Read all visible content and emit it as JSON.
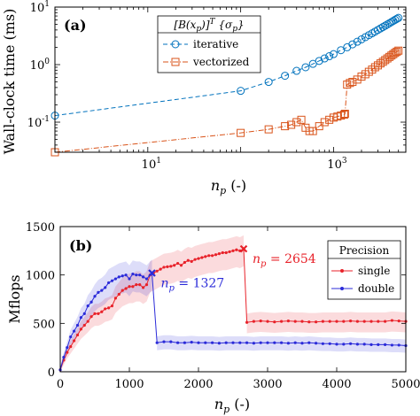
{
  "chart_data": [
    {
      "type": "line",
      "panel_label": "(a)",
      "xlabel": "n_p (-)",
      "ylabel": "Wall-clock time (ms)",
      "xscale": "log",
      "yscale": "log",
      "xlim": [
        1,
        6000
      ],
      "ylim": [
        0.03,
        10
      ],
      "xticks": [
        10,
        1000
      ],
      "xtick_labels": [
        "10^1",
        "10^3"
      ],
      "yticks": [
        0.1,
        1,
        10
      ],
      "ytick_labels": [
        "10^-1",
        "10^0",
        "10^1"
      ],
      "grid": false,
      "legend": {
        "title": "[B(x_p)]^T {σ_p}",
        "placement": "top-right",
        "entries": [
          "iterative",
          "vectorized"
        ]
      },
      "series": [
        {
          "name": "iterative",
          "color": "#0072BD",
          "marker": "circle",
          "line_style": "dashed",
          "x": [
            1,
            100,
            200,
            300,
            400,
            500,
            600,
            700,
            800,
            900,
            1000,
            1200,
            1400,
            1600,
            1800,
            2000,
            2200,
            2400,
            2600,
            2800,
            3000,
            3200,
            3400,
            3600,
            3800,
            4000,
            4200,
            4400,
            4600,
            4800,
            5000
          ],
          "y": [
            0.13,
            0.35,
            0.5,
            0.64,
            0.78,
            0.9,
            1.03,
            1.16,
            1.28,
            1.4,
            1.52,
            1.78,
            2.0,
            2.25,
            2.5,
            2.75,
            3.0,
            3.25,
            3.5,
            3.75,
            4.0,
            4.25,
            4.5,
            4.75,
            5.0,
            5.25,
            5.5,
            5.75,
            6.0,
            6.25,
            6.5
          ]
        },
        {
          "name": "vectorized",
          "color": "#D95319",
          "marker": "square",
          "line_style": "dashdot",
          "x": [
            1,
            100,
            200,
            300,
            350,
            400,
            450,
            500,
            550,
            600,
            700,
            800,
            900,
            1000,
            1100,
            1200,
            1300,
            1327,
            1400,
            1500,
            1600,
            1800,
            2000,
            2200,
            2400,
            2600,
            2800,
            3000,
            3200,
            3400,
            3600,
            3800,
            4000,
            4200,
            4400,
            4600,
            4800,
            5000
          ],
          "y": [
            0.03,
            0.065,
            0.075,
            0.085,
            0.09,
            0.1,
            0.11,
            0.08,
            0.07,
            0.07,
            0.085,
            0.1,
            0.11,
            0.12,
            0.125,
            0.13,
            0.135,
            0.14,
            0.45,
            0.48,
            0.5,
            0.55,
            0.62,
            0.68,
            0.75,
            0.82,
            0.9,
            0.97,
            1.05,
            1.12,
            1.2,
            1.28,
            1.36,
            1.44,
            1.52,
            1.6,
            1.68,
            1.75
          ]
        }
      ]
    },
    {
      "type": "line",
      "panel_label": "(b)",
      "xlabel": "n_p (-)",
      "ylabel": "Mflops",
      "xlim": [
        0,
        5000
      ],
      "ylim": [
        0,
        1500
      ],
      "xticks": [
        0,
        1000,
        2000,
        3000,
        4000,
        5000
      ],
      "yticks": [
        0,
        500,
        1000,
        1500
      ],
      "grid": false,
      "legend": {
        "title": "Precision",
        "placement": "center-right",
        "entries": [
          "single",
          "double"
        ]
      },
      "annotations": [
        {
          "text": "n_p = 2654",
          "x": 2654,
          "y": 1270,
          "color": "#E8222A"
        },
        {
          "text": "n_p = 1327",
          "x": 1327,
          "y": 1020,
          "color": "#2B2BD9"
        }
      ],
      "series": [
        {
          "name": "single",
          "color": "#E8222A",
          "marker": "dot",
          "x": [
            0,
            50,
            100,
            150,
            200,
            250,
            300,
            350,
            400,
            450,
            500,
            550,
            600,
            650,
            700,
            750,
            800,
            850,
            900,
            950,
            1000,
            1050,
            1100,
            1150,
            1200,
            1250,
            1300,
            1350,
            1400,
            1450,
            1500,
            1550,
            1600,
            1650,
            1700,
            1750,
            1800,
            1850,
            1900,
            1950,
            2000,
            2050,
            2100,
            2150,
            2200,
            2250,
            2300,
            2350,
            2400,
            2450,
            2500,
            2550,
            2600,
            2654,
            2700,
            2800,
            2900,
            3000,
            3100,
            3200,
            3300,
            3400,
            3500,
            3600,
            3700,
            3800,
            3900,
            4000,
            4100,
            4200,
            4300,
            4400,
            4500,
            4600,
            4700,
            4800,
            4900,
            5000
          ],
          "y": [
            20,
            120,
            200,
            260,
            320,
            380,
            440,
            480,
            520,
            570,
            600,
            600,
            620,
            650,
            660,
            680,
            760,
            800,
            840,
            860,
            880,
            880,
            900,
            900,
            870,
            900,
            1000,
            1020,
            1040,
            1060,
            1080,
            1085,
            1090,
            1100,
            1120,
            1100,
            1130,
            1150,
            1140,
            1160,
            1170,
            1180,
            1190,
            1200,
            1200,
            1210,
            1220,
            1230,
            1230,
            1240,
            1250,
            1260,
            1250,
            1270,
            510,
            520,
            525,
            520,
            515,
            520,
            525,
            520,
            520,
            515,
            515,
            520,
            520,
            520,
            520,
            525,
            520,
            520,
            520,
            520,
            520,
            530,
            525,
            520
          ]
        },
        {
          "name": "double",
          "color": "#2B2BD9",
          "marker": "dot",
          "x": [
            0,
            50,
            100,
            150,
            200,
            250,
            300,
            350,
            400,
            450,
            500,
            550,
            600,
            650,
            700,
            750,
            800,
            850,
            900,
            950,
            1000,
            1050,
            1100,
            1150,
            1200,
            1250,
            1327,
            1400,
            1500,
            1600,
            1700,
            1800,
            1900,
            2000,
            2100,
            2200,
            2300,
            2400,
            2500,
            2600,
            2700,
            2800,
            2900,
            3000,
            3100,
            3200,
            3300,
            3400,
            3500,
            3600,
            3700,
            3800,
            3900,
            4000,
            4100,
            4200,
            4300,
            4400,
            4500,
            4600,
            4700,
            4800,
            4900,
            5000
          ],
          "y": [
            20,
            150,
            250,
            360,
            420,
            480,
            560,
            600,
            680,
            720,
            780,
            820,
            840,
            870,
            920,
            940,
            960,
            980,
            990,
            1000,
            960,
            1010,
            1000,
            1000,
            980,
            960,
            1020,
            300,
            310,
            310,
            300,
            300,
            305,
            300,
            300,
            300,
            295,
            300,
            300,
            300,
            300,
            295,
            300,
            300,
            300,
            300,
            295,
            300,
            295,
            300,
            295,
            290,
            290,
            285,
            285,
            290,
            285,
            285,
            280,
            280,
            280,
            275,
            275,
            270
          ]
        }
      ]
    }
  ]
}
